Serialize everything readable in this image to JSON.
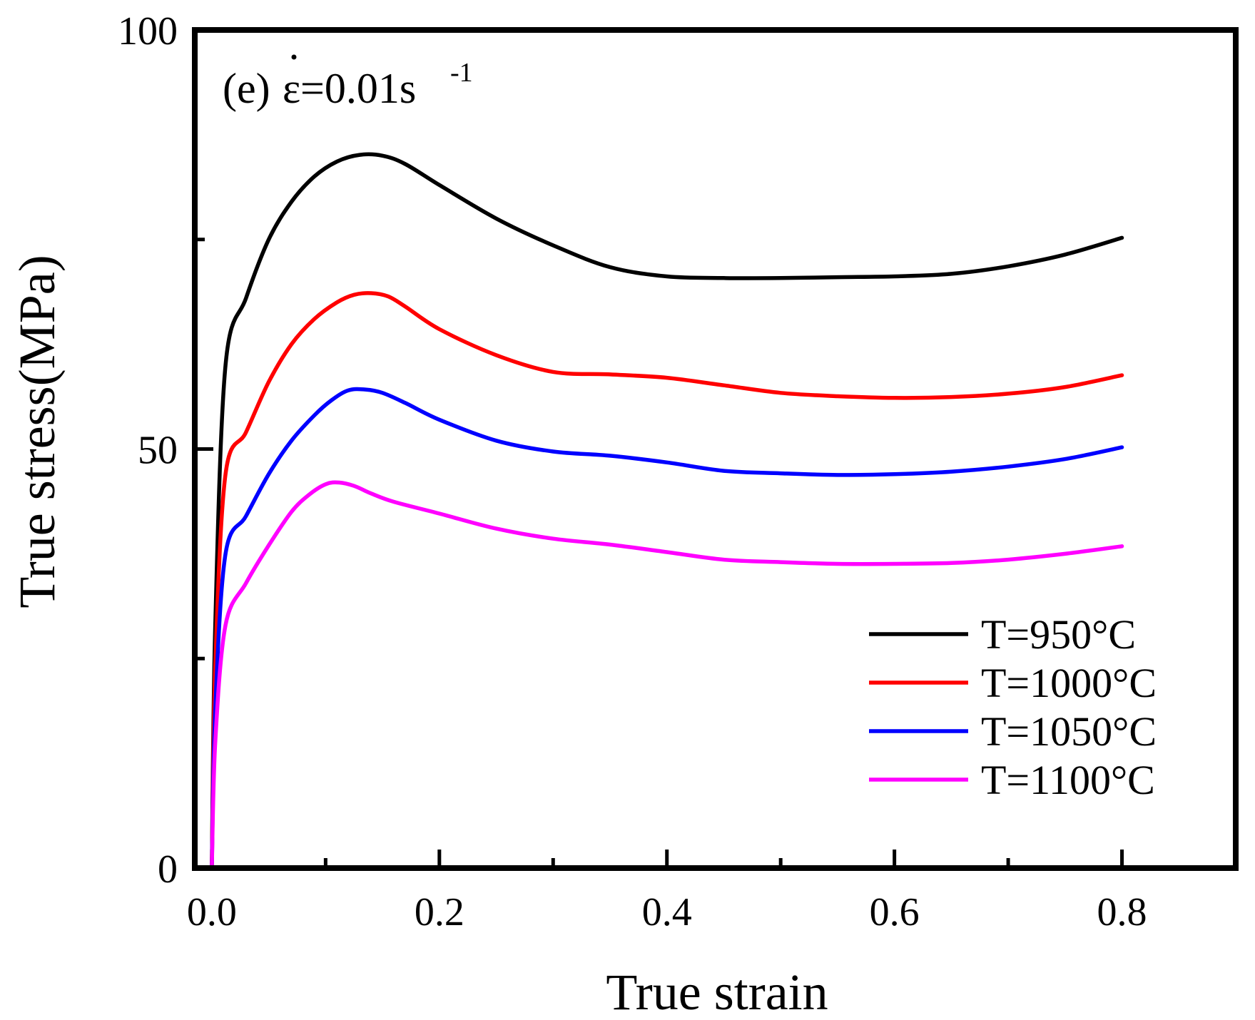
{
  "chart_data": {
    "type": "line",
    "panel_label": "(e)",
    "rate_symbol": "ε",
    "rate_equals": "=0.01s",
    "rate_exponent": "-1",
    "xlabel": "True strain",
    "ylabel": "True stress(MPa)",
    "xlim": [
      -0.015,
      0.9
    ],
    "ylim": [
      0,
      100
    ],
    "x_ticks": [
      0.0,
      0.2,
      0.4,
      0.6,
      0.8
    ],
    "x_tick_labels": [
      "0.0",
      "0.2",
      "0.4",
      "0.6",
      "0.8"
    ],
    "x_minor_ticks": [
      0.1,
      0.3,
      0.5,
      0.7
    ],
    "y_ticks": [
      0,
      50,
      100
    ],
    "y_tick_labels": [
      "0",
      "50",
      "100"
    ],
    "y_minor_ticks": [
      25,
      75
    ],
    "grid": false,
    "legend_position": "bottom-right",
    "series": [
      {
        "name": "T=950°C",
        "color": "#000000",
        "x": [
          0.0,
          0.003,
          0.012,
          0.03,
          0.05,
          0.07,
          0.09,
          0.11,
          0.13,
          0.15,
          0.17,
          0.2,
          0.25,
          0.3,
          0.35,
          0.4,
          0.45,
          0.5,
          0.55,
          0.6,
          0.65,
          0.7,
          0.75,
          0.8
        ],
        "y": [
          0,
          29,
          60,
          68,
          75,
          79.5,
          82.5,
          84.3,
          85.1,
          85.0,
          84.0,
          81.5,
          77.5,
          74.3,
          71.7,
          70.6,
          70.4,
          70.4,
          70.5,
          70.6,
          70.9,
          71.8,
          73.2,
          75.2
        ]
      },
      {
        "name": "T=1000°C",
        "color": "#ff0000",
        "x": [
          0.0,
          0.003,
          0.012,
          0.03,
          0.05,
          0.07,
          0.09,
          0.11,
          0.125,
          0.14,
          0.155,
          0.17,
          0.2,
          0.25,
          0.3,
          0.35,
          0.4,
          0.45,
          0.5,
          0.55,
          0.6,
          0.65,
          0.7,
          0.75,
          0.8
        ],
        "y": [
          0,
          24,
          47,
          52,
          58,
          62.5,
          65.5,
          67.5,
          68.4,
          68.6,
          68.2,
          67.0,
          64.3,
          61.2,
          59.2,
          58.9,
          58.5,
          57.6,
          56.7,
          56.3,
          56.1,
          56.2,
          56.6,
          57.4,
          58.8
        ]
      },
      {
        "name": "T=1050°C",
        "color": "#0000ff",
        "x": [
          0.0,
          0.003,
          0.012,
          0.03,
          0.05,
          0.07,
          0.09,
          0.105,
          0.12,
          0.135,
          0.15,
          0.17,
          0.2,
          0.25,
          0.3,
          0.35,
          0.4,
          0.45,
          0.5,
          0.55,
          0.6,
          0.65,
          0.7,
          0.75,
          0.8
        ],
        "y": [
          0,
          19,
          37.5,
          42,
          47,
          51,
          54,
          55.8,
          57.0,
          57.1,
          56.7,
          55.5,
          53.5,
          51.0,
          49.7,
          49.2,
          48.4,
          47.4,
          47.1,
          46.9,
          47.0,
          47.3,
          47.9,
          48.8,
          50.2
        ]
      },
      {
        "name": "T=1100°C",
        "color": "#ff00ff",
        "x": [
          0.0,
          0.003,
          0.012,
          0.03,
          0.05,
          0.07,
          0.085,
          0.1,
          0.112,
          0.125,
          0.14,
          0.16,
          0.2,
          0.25,
          0.3,
          0.35,
          0.4,
          0.45,
          0.5,
          0.55,
          0.6,
          0.65,
          0.7,
          0.75,
          0.8
        ],
        "y": [
          0,
          15,
          29,
          34,
          38.5,
          42.5,
          44.5,
          45.8,
          46.0,
          45.6,
          44.7,
          43.7,
          42.3,
          40.5,
          39.3,
          38.6,
          37.7,
          36.8,
          36.5,
          36.3,
          36.3,
          36.4,
          36.8,
          37.5,
          38.4
        ]
      }
    ]
  }
}
